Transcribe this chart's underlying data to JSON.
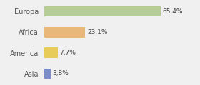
{
  "categories": [
    "Europa",
    "Africa",
    "America",
    "Asia"
  ],
  "values": [
    65.4,
    23.1,
    7.7,
    3.8
  ],
  "labels": [
    "65,4%",
    "23,1%",
    "7,7%",
    "3,8%"
  ],
  "colors": [
    "#b5cc96",
    "#e8b87a",
    "#e8cc5a",
    "#7b8ec8"
  ],
  "background_color": "#f0f0f0",
  "xlim": [
    0,
    85
  ],
  "bar_height": 0.5
}
